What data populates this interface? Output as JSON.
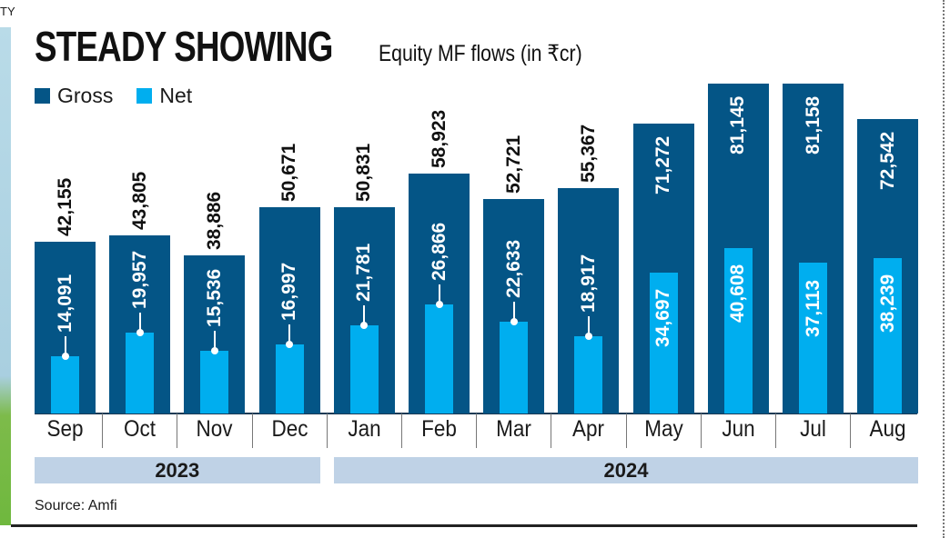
{
  "chart_data": {
    "type": "bar",
    "title": "STEADY SHOWING",
    "subtitle": "Equity MF flows (in ₹cr)",
    "categories": [
      "Sep",
      "Oct",
      "Nov",
      "Dec",
      "Jan",
      "Feb",
      "Mar",
      "Apr",
      "May",
      "Jun",
      "Jul",
      "Aug"
    ],
    "years": [
      {
        "label": "2023",
        "months": 4
      },
      {
        "label": "2024",
        "months": 8
      }
    ],
    "series": [
      {
        "name": "Gross",
        "color": "#045586",
        "values": [
          42155,
          43805,
          38886,
          50671,
          50831,
          58923,
          52721,
          55367,
          71272,
          81145,
          81158,
          72542
        ],
        "labels": [
          "42,155",
          "43,805",
          "38,886",
          "50,671",
          "50,831",
          "58,923",
          "52,721",
          "55,367",
          "71,272",
          "81,145",
          "81,158",
          "72,542"
        ]
      },
      {
        "name": "Net",
        "color": "#00aeef",
        "values": [
          14091,
          19957,
          15536,
          16997,
          21781,
          26866,
          22633,
          18917,
          34697,
          40608,
          37113,
          38239
        ],
        "labels": [
          "14,091",
          "19,957",
          "15,536",
          "16,997",
          "21,781",
          "26,866",
          "22,633",
          "18,917",
          "34,697",
          "40,608",
          "37,113",
          "38,239"
        ]
      }
    ],
    "ylim": [
      0,
      82000
    ],
    "grid": false,
    "legend": "top-left"
  },
  "source": "Source: Amfi",
  "edge_text": "TY"
}
